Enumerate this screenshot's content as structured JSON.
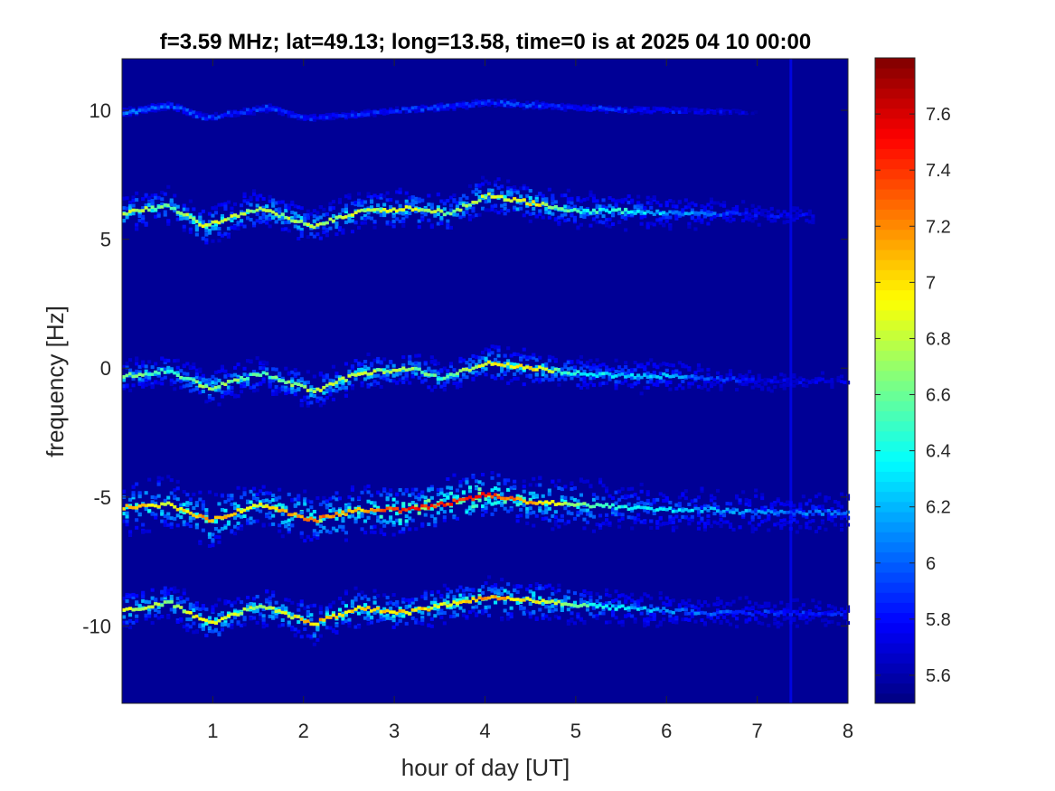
{
  "chart_data": {
    "type": "heatmap",
    "title": "f=3.59 MHz;  lat=49.13; long=13.58, time=0 is at 2025 04 10 00:00",
    "xlabel": "hour of day [UT]",
    "ylabel": "frequency [Hz]",
    "xlim": [
      0,
      8
    ],
    "ylim": [
      -13,
      12
    ],
    "x_ticks": [
      1,
      2,
      3,
      4,
      5,
      6,
      7,
      8
    ],
    "x_tick_labels": [
      "1",
      "2",
      "3",
      "4",
      "5",
      "6",
      "7",
      "8"
    ],
    "y_ticks": [
      10,
      5,
      0,
      -5,
      -10
    ],
    "y_tick_labels": [
      "10",
      "5",
      "0",
      "-5",
      "-10"
    ],
    "colorbar": {
      "colormap": "jet",
      "limits": [
        5.5,
        7.8
      ],
      "ticks": [
        5.6,
        5.8,
        6,
        6.2,
        6.4,
        6.6,
        6.8,
        7,
        7.2,
        7.4,
        7.6
      ],
      "tick_labels": [
        "5.6",
        "5.8",
        "6",
        "6.2",
        "6.4",
        "6.6",
        "6.8",
        "7",
        "7.2",
        "7.4",
        "7.6"
      ]
    },
    "background_value": 5.55,
    "grid": false,
    "traces": [
      {
        "center": 10,
        "x": [
          0,
          0.5,
          0.9,
          1.6,
          2.0,
          2.5,
          3.0,
          3.5,
          4.0,
          4.5,
          5.0,
          5.5,
          6.0,
          6.5,
          7.0
        ],
        "y": [
          9.9,
          10.2,
          9.7,
          10.1,
          9.7,
          9.8,
          10.0,
          10.1,
          10.3,
          10.2,
          10.1,
          10.0,
          10.0,
          9.95,
          9.9
        ],
        "intensity": [
          6.2,
          6.1,
          6.0,
          6.0,
          5.95,
          5.95,
          5.95,
          6.0,
          6.0,
          6.0,
          5.95,
          5.95,
          5.9,
          5.85,
          5.75
        ],
        "spread": 0.15
      },
      {
        "center": 6,
        "x": [
          0,
          0.5,
          0.9,
          1.5,
          2.1,
          2.6,
          3.2,
          3.6,
          4.0,
          4.5,
          5.0,
          5.5,
          6.0,
          6.5,
          7.0,
          7.6
        ],
        "y": [
          6.0,
          6.3,
          5.5,
          6.2,
          5.5,
          6.1,
          6.2,
          6.0,
          6.7,
          6.4,
          6.1,
          6.1,
          6.0,
          6.0,
          5.95,
          5.9
        ],
        "intensity": [
          6.9,
          6.7,
          7.0,
          6.8,
          6.9,
          6.9,
          7.0,
          6.7,
          6.9,
          7.1,
          6.6,
          6.5,
          6.3,
          6.1,
          5.9,
          5.85
        ],
        "spread": 0.6
      },
      {
        "center": 0,
        "x": [
          0,
          0.5,
          0.95,
          1.5,
          2.1,
          2.6,
          3.2,
          3.5,
          4.0,
          4.5,
          5.0,
          5.5,
          6.0,
          6.5,
          7.0,
          8.0
        ],
        "y": [
          -0.3,
          -0.1,
          -0.8,
          -0.2,
          -0.9,
          -0.2,
          0.0,
          -0.4,
          0.2,
          0.0,
          -0.2,
          -0.3,
          -0.3,
          -0.4,
          -0.5,
          -0.5
        ],
        "intensity": [
          6.8,
          6.6,
          6.9,
          6.6,
          6.9,
          6.9,
          6.8,
          6.6,
          7.0,
          7.1,
          6.5,
          6.4,
          6.3,
          6.0,
          5.85,
          5.8
        ],
        "spread": 0.55
      },
      {
        "center": -5,
        "x": [
          0,
          0.5,
          0.95,
          1.5,
          2.1,
          2.6,
          3.1,
          3.5,
          4.0,
          4.5,
          5.0,
          5.5,
          6.0,
          6.5,
          7.0,
          8.0
        ],
        "y": [
          -5.4,
          -5.3,
          -5.9,
          -5.3,
          -5.9,
          -5.5,
          -5.5,
          -5.3,
          -4.9,
          -5.2,
          -5.3,
          -5.4,
          -5.5,
          -5.5,
          -5.6,
          -5.6
        ],
        "intensity": [
          7.2,
          7.0,
          7.3,
          7.0,
          7.4,
          7.2,
          7.6,
          7.5,
          7.6,
          7.2,
          6.8,
          6.5,
          6.4,
          6.3,
          6.2,
          6.1
        ],
        "spread": 0.8
      },
      {
        "center": -10,
        "x": [
          0,
          0.5,
          0.95,
          1.5,
          2.1,
          2.6,
          3.1,
          3.5,
          4.0,
          4.5,
          5.0,
          5.5,
          6.0,
          6.5,
          7.0,
          8.0
        ],
        "y": [
          -9.4,
          -9.1,
          -9.9,
          -9.2,
          -9.9,
          -9.3,
          -9.5,
          -9.2,
          -8.9,
          -9.0,
          -9.2,
          -9.3,
          -9.4,
          -9.5,
          -9.5,
          -9.5
        ],
        "intensity": [
          7.0,
          6.8,
          7.1,
          6.8,
          7.2,
          7.1,
          7.2,
          7.0,
          7.3,
          7.1,
          6.7,
          6.4,
          6.2,
          6.1,
          6.0,
          5.9
        ],
        "spread": 0.6
      }
    ],
    "vertical_artifact": {
      "x": 7.37,
      "intensity": 5.8
    }
  }
}
